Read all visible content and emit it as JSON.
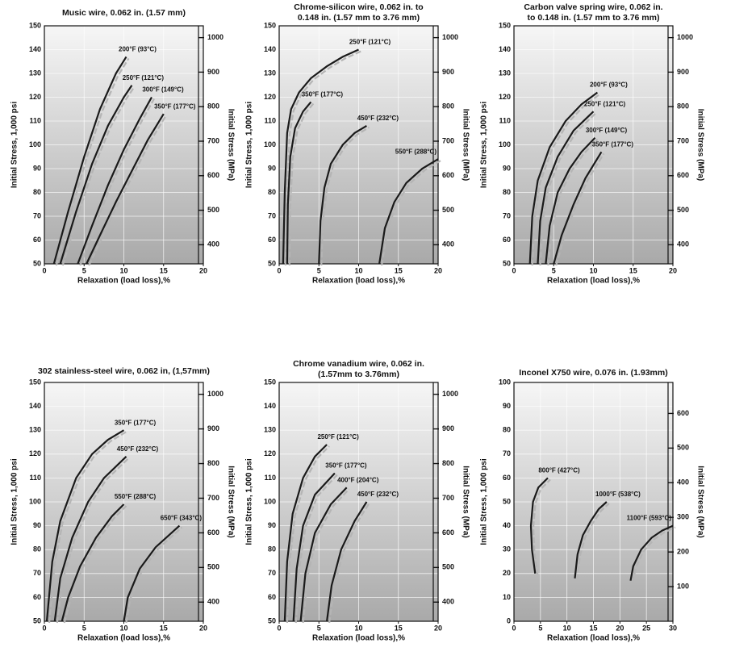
{
  "chart_data": [
    {
      "type": "line",
      "title": [
        "Music wire, 0.062 in. (1.57 mm)"
      ],
      "xlabel": "Relaxation (load loss),%",
      "ylabel": "Initial Stress, 1,000 psi",
      "y2label": "Initial Stress (MPa)",
      "xlim": [
        0,
        20
      ],
      "xticks": [
        0,
        5,
        10,
        15,
        20
      ],
      "ylim": [
        50,
        150
      ],
      "yticks": [
        50,
        60,
        70,
        80,
        90,
        100,
        110,
        120,
        130,
        140,
        150
      ],
      "y2lim": [
        344.7,
        1034.2
      ],
      "y2ticks": [
        400,
        500,
        600,
        700,
        800,
        900,
        1000
      ],
      "grid": true,
      "series": [
        {
          "name": "200°F (93°C)",
          "color": "#1a1a1a",
          "x": [
            1.2,
            3,
            5,
            7,
            9,
            10.3
          ],
          "values": [
            50,
            72,
            95,
            115,
            130,
            137
          ]
        },
        {
          "name": "250°F (121°C)",
          "color": "#1a1a1a",
          "x": [
            2,
            4,
            6,
            8,
            10,
            11
          ],
          "values": [
            50,
            72,
            92,
            108,
            120,
            125
          ]
        },
        {
          "name": "300°F (149°C)",
          "color": "#1a1a1a",
          "x": [
            4.2,
            6,
            8,
            10,
            12,
            13.5
          ],
          "values": [
            50,
            66,
            83,
            98,
            111,
            120
          ]
        },
        {
          "name": "350°F (177°C)",
          "color": "#1a1a1a",
          "x": [
            5.3,
            7,
            9,
            11,
            13,
            15
          ],
          "values": [
            50,
            62,
            76,
            89,
            102,
            113
          ]
        }
      ]
    },
    {
      "type": "line",
      "title": [
        "Chrome-silicon wire, 0.062 in. to",
        "0.148 in. (1.57 mm to 3.76 mm)"
      ],
      "xlabel": "Relaxation (load loss),%",
      "ylabel": "Initial Stress, 1,000 psi",
      "y2label": "Initial Stress (MPa)",
      "xlim": [
        0,
        20
      ],
      "xticks": [
        0,
        5,
        10,
        15,
        20
      ],
      "ylim": [
        50,
        150
      ],
      "yticks": [
        50,
        60,
        70,
        80,
        90,
        100,
        110,
        120,
        130,
        140,
        150
      ],
      "y2lim": [
        344.7,
        1034.2
      ],
      "y2ticks": [
        400,
        500,
        600,
        700,
        800,
        900,
        1000
      ],
      "grid": true,
      "series": [
        {
          "name": "250°F (121°C)",
          "color": "#1a1a1a",
          "x": [
            0.5,
            0.7,
            1,
            1.5,
            2.5,
            4,
            6,
            8,
            10
          ],
          "values": [
            50,
            80,
            105,
            115,
            122,
            128,
            133,
            137,
            140
          ]
        },
        {
          "name": "350°F (177°C)",
          "color": "#1a1a1a",
          "x": [
            1,
            1.1,
            1.4,
            2,
            3,
            4
          ],
          "values": [
            50,
            75,
            95,
            107,
            114,
            118
          ]
        },
        {
          "name": "450°F (232°C)",
          "color": "#1a1a1a",
          "x": [
            5,
            5.2,
            5.7,
            6.5,
            8,
            9.5,
            11
          ],
          "values": [
            50,
            68,
            82,
            92,
            100,
            105,
            108
          ]
        },
        {
          "name": "550°F (288°C)",
          "color": "#1a1a1a",
          "x": [
            12.6,
            13.3,
            14.5,
            16,
            18,
            20
          ],
          "values": [
            50,
            65,
            76,
            84,
            90,
            94
          ]
        }
      ]
    },
    {
      "type": "line",
      "title": [
        "Carbon valve spring wire, 0.062 in.",
        "to 0.148 in. (1.57 mm to 3.76 mm)"
      ],
      "xlabel": "Relaxation (load loss),%",
      "ylabel": "Initial Stress, 1,000 psi",
      "y2label": "Initial Stress (MPa)",
      "xlim": [
        0,
        20
      ],
      "xticks": [
        0,
        5,
        10,
        15,
        20
      ],
      "ylim": [
        50,
        150
      ],
      "yticks": [
        50,
        60,
        70,
        80,
        90,
        100,
        110,
        120,
        130,
        140,
        150
      ],
      "y2lim": [
        344.7,
        1034.2
      ],
      "y2ticks": [
        400,
        500,
        600,
        700,
        800,
        900,
        1000
      ],
      "grid": true,
      "series": [
        {
          "name": "200°F (93°C)",
          "color": "#1a1a1a",
          "x": [
            2,
            2.3,
            3,
            4.5,
            6.5,
            8.5,
            10.5
          ],
          "values": [
            50,
            70,
            85,
            99,
            110,
            117,
            122
          ]
        },
        {
          "name": "250°F (121°C)",
          "color": "#1a1a1a",
          "x": [
            3,
            3.3,
            4,
            5.5,
            7.5,
            10
          ],
          "values": [
            50,
            68,
            82,
            95,
            106,
            114
          ]
        },
        {
          "name": "300°F (149°C)",
          "color": "#1a1a1a",
          "x": [
            4,
            4.5,
            5.5,
            7,
            8.5,
            10.2
          ],
          "values": [
            50,
            66,
            80,
            90,
            97,
            103
          ]
        },
        {
          "name": "350°F (177°C)",
          "color": "#1a1a1a",
          "x": [
            5,
            6,
            7.5,
            9,
            11
          ],
          "values": [
            50,
            62,
            75,
            86,
            97
          ]
        }
      ]
    },
    {
      "type": "line",
      "title": [
        "302 stainless-steel wire, 0.062 in, (1,57mm)"
      ],
      "xlabel": "Relaxation (load loss),%",
      "ylabel": "Initial Stress, 1,000 psi",
      "y2label": "Initial Stress (MPa)",
      "xlim": [
        0,
        20
      ],
      "xticks": [
        0,
        5,
        10,
        15,
        20
      ],
      "ylim": [
        50,
        150
      ],
      "yticks": [
        50,
        60,
        70,
        80,
        90,
        100,
        110,
        120,
        130,
        140,
        150
      ],
      "y2lim": [
        344.7,
        1034.2
      ],
      "y2ticks": [
        400,
        500,
        600,
        700,
        800,
        900,
        1000
      ],
      "grid": true,
      "series": [
        {
          "name": "350°F (177°C)",
          "color": "#1a1a1a",
          "x": [
            0.3,
            1,
            2,
            4,
            6,
            8,
            10
          ],
          "values": [
            50,
            75,
            92,
            110,
            120,
            126,
            130
          ]
        },
        {
          "name": "450°F (232°C)",
          "color": "#1a1a1a",
          "x": [
            1.3,
            2,
            3.5,
            5.5,
            7.5,
            10.3
          ],
          "values": [
            50,
            68,
            85,
            100,
            110,
            119
          ]
        },
        {
          "name": "550°F (288°C)",
          "color": "#1a1a1a",
          "x": [
            2.2,
            3,
            4.5,
            6.5,
            8.5,
            10
          ],
          "values": [
            50,
            60,
            73,
            85,
            94,
            99
          ]
        },
        {
          "name": "650°F (343°C)",
          "color": "#1a1a1a",
          "x": [
            10,
            10.5,
            12,
            14,
            17
          ],
          "values": [
            50,
            60,
            72,
            81,
            90
          ]
        }
      ]
    },
    {
      "type": "line",
      "title": [
        "Chrome vanadium wire, 0.062 in.",
        "(1.57mm to 3.76mm)"
      ],
      "xlabel": "Relaxation (load loss),%",
      "ylabel": "Initial Stress, 1,000 psi",
      "y2label": "Initial Stress (MPa)",
      "xlim": [
        0,
        20
      ],
      "xticks": [
        0,
        5,
        10,
        15,
        20
      ],
      "ylim": [
        50,
        150
      ],
      "yticks": [
        50,
        60,
        70,
        80,
        90,
        100,
        110,
        120,
        130,
        140,
        150
      ],
      "y2lim": [
        344.7,
        1034.2
      ],
      "y2ticks": [
        400,
        500,
        600,
        700,
        800,
        900,
        1000
      ],
      "grid": true,
      "series": [
        {
          "name": "250°F (121°C)",
          "color": "#1a1a1a",
          "x": [
            0.7,
            1,
            1.7,
            3,
            4.5,
            6
          ],
          "values": [
            50,
            75,
            95,
            110,
            119,
            124
          ]
        },
        {
          "name": "350°F (177°C)",
          "color": "#1a1a1a",
          "x": [
            1.8,
            2.2,
            3,
            4.5,
            7
          ],
          "values": [
            50,
            72,
            90,
            103,
            112
          ]
        },
        {
          "name": "400°F (204°C)",
          "color": "#1a1a1a",
          "x": [
            2.7,
            3.3,
            4.5,
            6.5,
            8.5
          ],
          "values": [
            50,
            70,
            87,
            99,
            106
          ]
        },
        {
          "name": "450°F (232°C)",
          "color": "#1a1a1a",
          "x": [
            6,
            6.6,
            7.8,
            9.5,
            11
          ],
          "values": [
            50,
            65,
            80,
            92,
            100
          ]
        }
      ]
    },
    {
      "type": "line",
      "title": [
        "Inconel X750 wire, 0.076 in. (1.93mm)"
      ],
      "xlabel": "Relaxation (load loss),%",
      "ylabel": "Initial Stress, 1,000 psi",
      "y2label": "Initial Stress (MPa)",
      "xlim": [
        0,
        30
      ],
      "xticks": [
        0,
        5,
        10,
        15,
        20,
        25,
        30
      ],
      "ylim": [
        0,
        100
      ],
      "yticks": [
        0,
        10,
        20,
        30,
        40,
        50,
        60,
        70,
        80,
        90,
        100
      ],
      "y2lim": [
        0,
        689.5
      ],
      "y2ticks": [
        100,
        200,
        300,
        400,
        500,
        600
      ],
      "grid": true,
      "series": [
        {
          "name": "800°F (427°C)",
          "color": "#1a1a1a",
          "x": [
            4,
            3.4,
            3.2,
            3.6,
            4.6,
            6.4
          ],
          "values": [
            20,
            30,
            40,
            50,
            56,
            60
          ]
        },
        {
          "name": "1000°F (538°C)",
          "color": "#1a1a1a",
          "x": [
            11.5,
            12,
            13,
            14.5,
            16,
            17.5
          ],
          "values": [
            18,
            28,
            36,
            42,
            47,
            50
          ]
        },
        {
          "name": "1100°F (593°C)",
          "color": "#1a1a1a",
          "x": [
            22,
            22.5,
            24,
            26,
            28,
            30
          ],
          "values": [
            17,
            23,
            30,
            35,
            38,
            40
          ]
        }
      ]
    }
  ]
}
